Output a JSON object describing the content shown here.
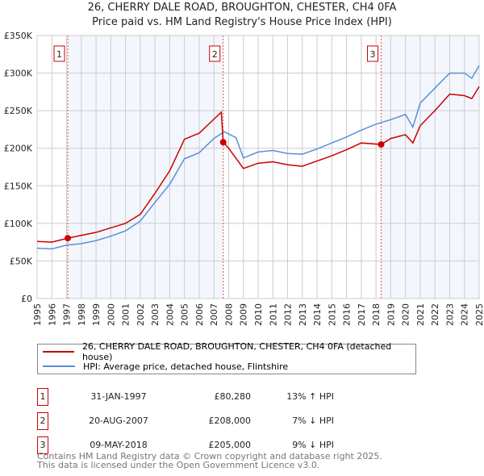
{
  "chart_data": {
    "type": "line",
    "title": "26, CHERRY DALE ROAD, BROUGHTON, CHESTER, CH4 0FA",
    "subtitle": "Price paid vs. HM Land Registry's House Price Index (HPI)",
    "xlim": [
      1995,
      2025
    ],
    "ylim": [
      0,
      350000
    ],
    "x_ticks": [
      "1995",
      "1996",
      "1997",
      "1998",
      "1999",
      "2000",
      "2001",
      "2002",
      "2003",
      "2004",
      "2005",
      "2006",
      "2007",
      "2008",
      "2009",
      "2010",
      "2011",
      "2012",
      "2013",
      "2014",
      "2015",
      "2016",
      "2017",
      "2018",
      "2019",
      "2020",
      "2021",
      "2022",
      "2023",
      "2024",
      "2025"
    ],
    "y_ticks": [
      {
        "v": 0,
        "l": "£0"
      },
      {
        "v": 50000,
        "l": "£50K"
      },
      {
        "v": 100000,
        "l": "£100K"
      },
      {
        "v": 150000,
        "l": "£150K"
      },
      {
        "v": 200000,
        "l": "£200K"
      },
      {
        "v": 250000,
        "l": "£250K"
      },
      {
        "v": 300000,
        "l": "£300K"
      },
      {
        "v": 350000,
        "l": "£350K"
      }
    ],
    "grid": true,
    "series": [
      {
        "name": "26, CHERRY DALE ROAD, BROUGHTON, CHESTER, CH4 0FA (detached house)",
        "color": "#cc0000",
        "x": [
          1995,
          1996,
          1997.08,
          1998,
          1999,
          2000,
          2001,
          2002,
          2003,
          2004,
          2005,
          2006,
          2007.5,
          2007.63,
          2008,
          2009,
          2010,
          2011,
          2012,
          2013,
          2014,
          2015,
          2016,
          2017,
          2018.35,
          2019,
          2020,
          2020.5,
          2021,
          2022,
          2023,
          2024,
          2024.5,
          2025
        ],
        "y": [
          76000,
          75000,
          80280,
          84000,
          88000,
          94000,
          100000,
          112000,
          140000,
          170000,
          212000,
          220000,
          248000,
          208000,
          200000,
          173000,
          180000,
          182000,
          178000,
          176000,
          183000,
          190000,
          198000,
          207000,
          205000,
          213000,
          218000,
          207000,
          230000,
          250000,
          272000,
          270000,
          266000,
          282000
        ]
      },
      {
        "name": "HPI: Average price, detached house, Flintshire",
        "color": "#5b8fd6",
        "x": [
          1995,
          1996,
          1997,
          1998,
          1999,
          2000,
          2001,
          2002,
          2003,
          2004,
          2005,
          2006,
          2007,
          2007.7,
          2008.5,
          2009,
          2010,
          2011,
          2012,
          2013,
          2014,
          2015,
          2016,
          2017,
          2018,
          2019,
          2020,
          2020.5,
          2021,
          2022,
          2023,
          2024,
          2024.5,
          2025
        ],
        "y": [
          67000,
          66000,
          71000,
          73000,
          77000,
          83000,
          90000,
          103000,
          128000,
          152000,
          186000,
          194000,
          213000,
          222000,
          214000,
          187000,
          195000,
          197000,
          193000,
          192000,
          199000,
          207000,
          215000,
          224000,
          232000,
          238000,
          245000,
          228000,
          260000,
          280000,
          300000,
          300000,
          293000,
          310000
        ]
      }
    ],
    "markers": [
      {
        "label": "1",
        "x": 1997.08,
        "y": 80280
      },
      {
        "label": "2",
        "x": 2007.63,
        "y": 208000
      },
      {
        "label": "3",
        "x": 2018.35,
        "y": 205000
      }
    ],
    "legend": "bottom"
  },
  "transactions": [
    {
      "n": "1",
      "date": "31-JAN-1997",
      "price": "£80,280",
      "hpi": "13% ↑ HPI"
    },
    {
      "n": "2",
      "date": "20-AUG-2007",
      "price": "£208,000",
      "hpi": "7% ↓ HPI"
    },
    {
      "n": "3",
      "date": "09-MAY-2018",
      "price": "£205,000",
      "hpi": "9% ↓ HPI"
    }
  ],
  "footer": {
    "line1": "Contains HM Land Registry data © Crown copyright and database right 2025.",
    "line2": "This data is licensed under the Open Government Licence v3.0."
  }
}
